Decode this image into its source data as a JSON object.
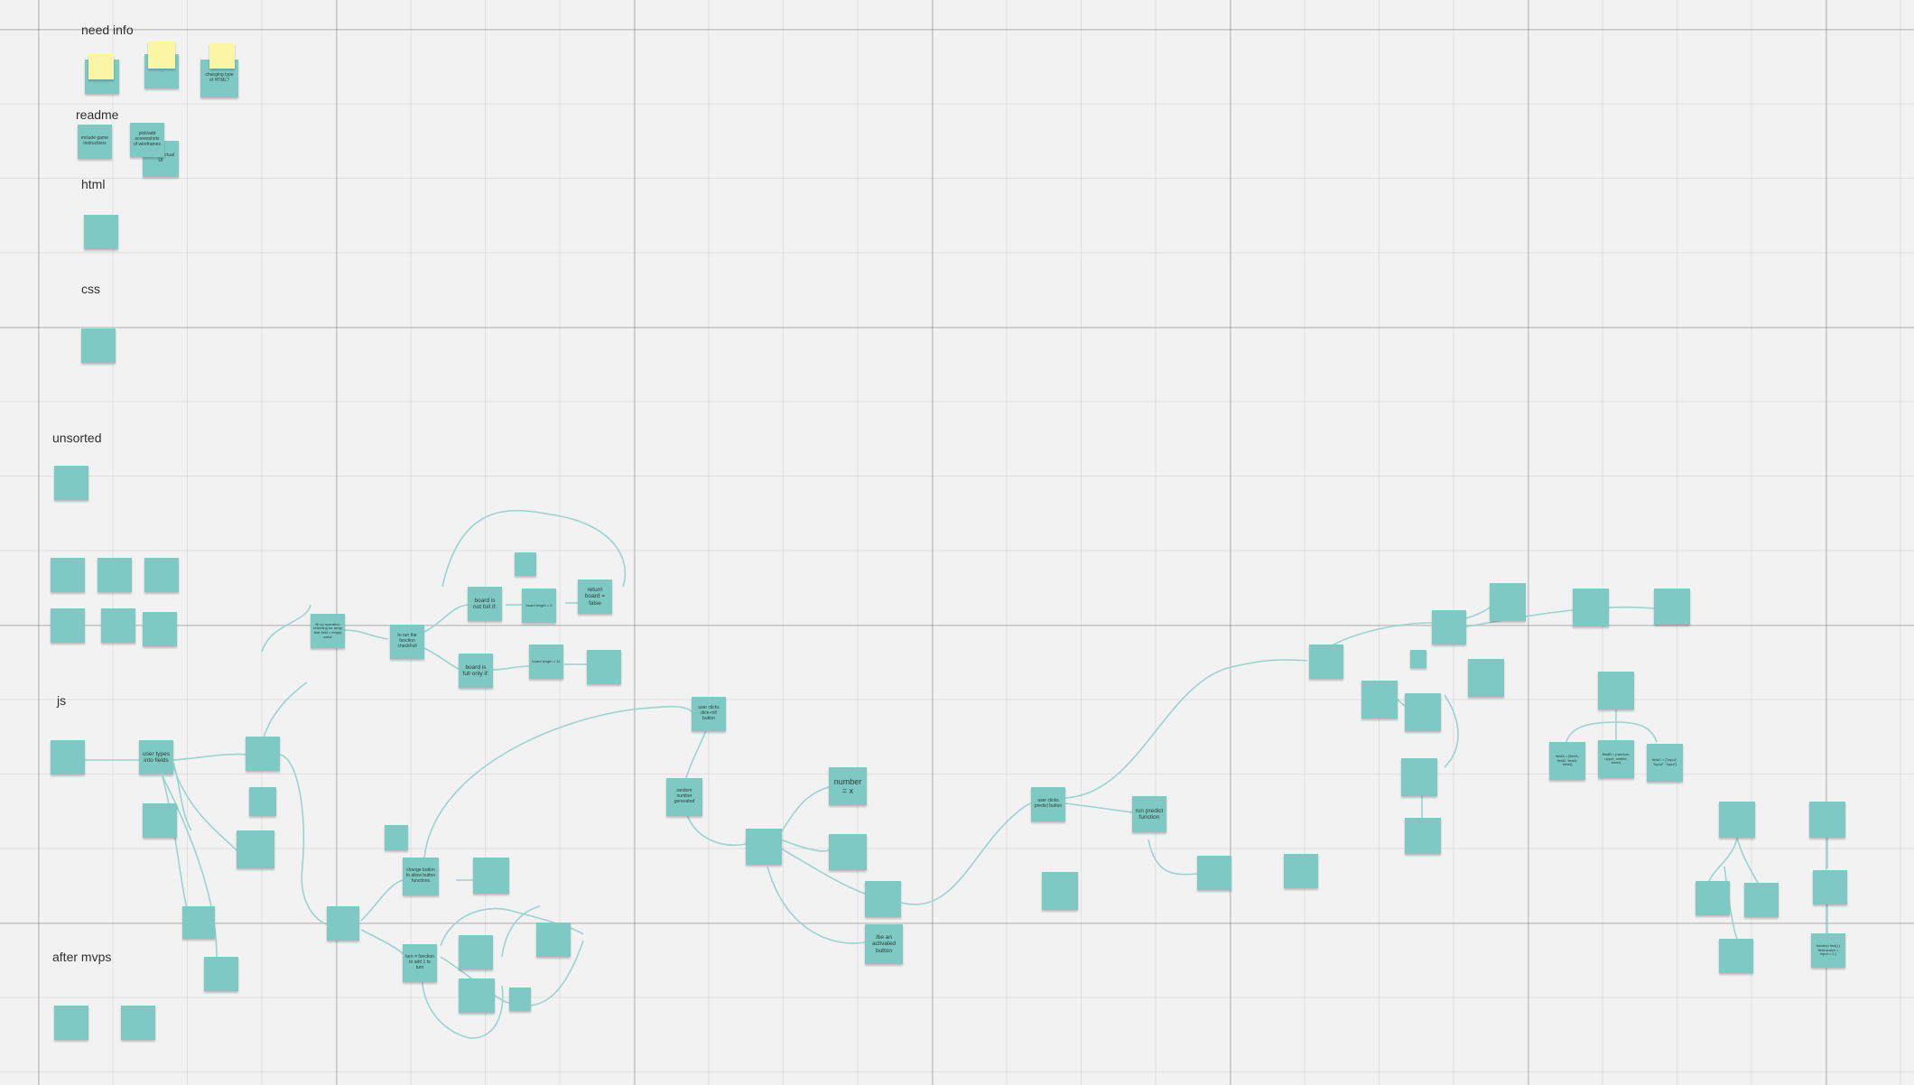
{
  "sections": {
    "need_info": "need info",
    "readme": "readme",
    "html": "html",
    "css": "css",
    "unsorted": "unsorted",
    "js": "js",
    "after_mvps": "after mvps"
  },
  "notes": {
    "need_info_1": "…",
    "need_info_2": "…",
    "need_info_3": "changing type of HTML?",
    "readme_include": "include game instructions",
    "readme_screenshots": "pick/add screenshots of wireframes",
    "readme_actual": "… with actual UI",
    "js_check_full": "fill up operation returning for array that field = empty value",
    "js_run_checkfull": "to run the function checkFull",
    "js_board_not_full": "board is not full if:",
    "js_board_full": "board is full only if:",
    "js_return_false": "return board = false",
    "js_board_length_1": "board length = 0",
    "js_board_length_2": "board length = 12",
    "js_user_types": "user types into fields",
    "js_user_clicks_dice": "user clicks dice-roll button",
    "js_random_number": "random number generated",
    "js_number_x": "number = x",
    "js_change_button": "change button to allow button functions",
    "js_turn_function": "turn = function to add 1 to turn",
    "js_user_clicks_predict": "user clicks predict button",
    "js_run_predict": "run predict function",
    "js_be_activated": "/be an activated button",
    "js_func_entry": "function find() { field.match = input = 1 }",
    "js_array_1": "fieldA = [field1, field2, field3, field4]",
    "js_array_2": "fieldB = [random, upper, middle, lower]",
    "js_array_3": "fieldC = [\"input\", \"input\", \"input\"]"
  }
}
